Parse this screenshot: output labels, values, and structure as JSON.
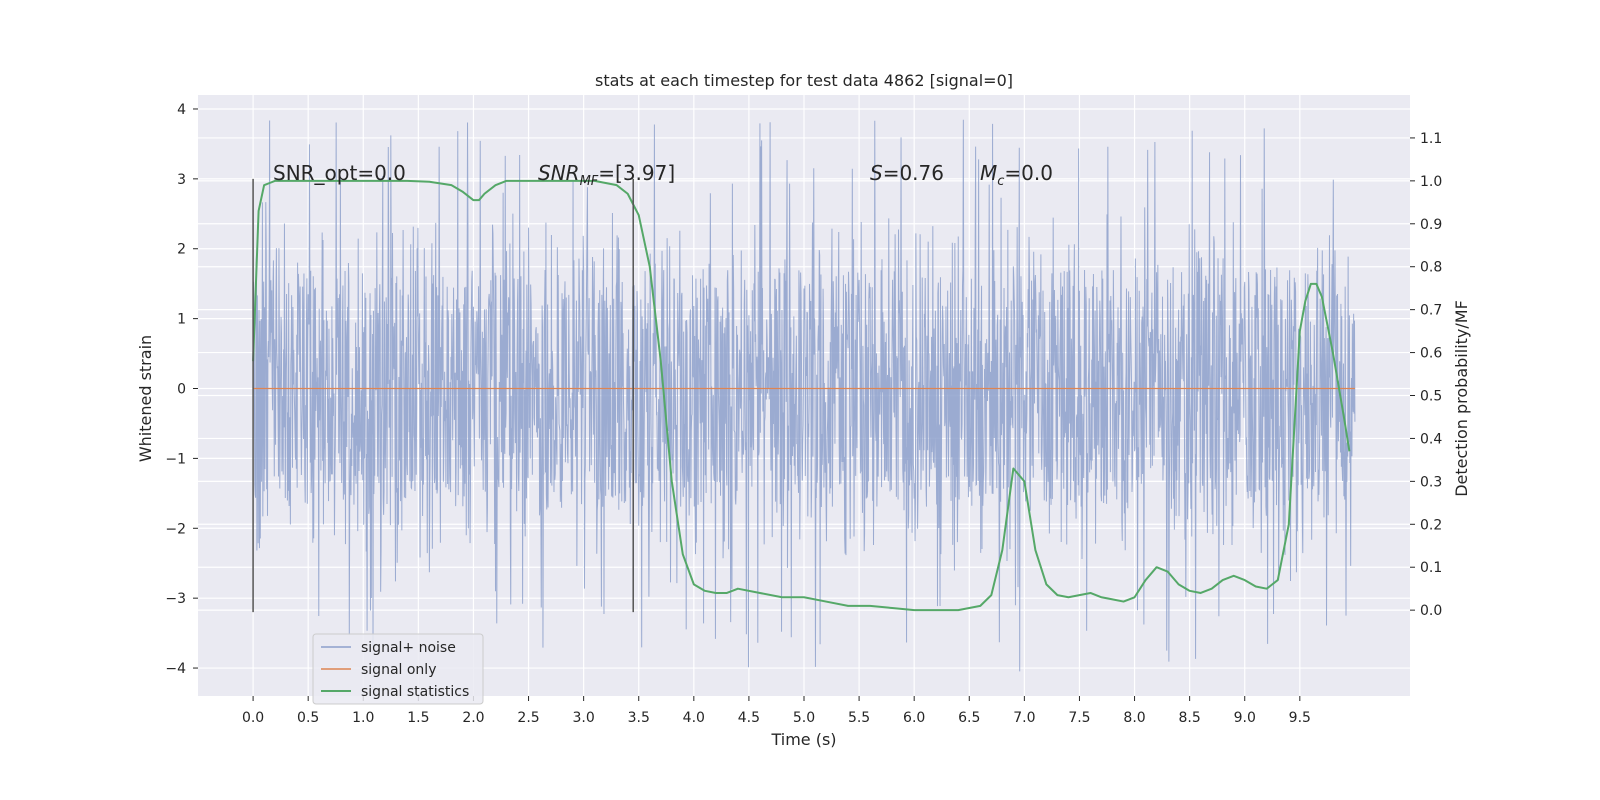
{
  "chart_data": {
    "type": "line",
    "title": "stats at each timestep for test data 4862 [signal=0]",
    "xlabel": "Time (s)",
    "ylabel": "Whitened strain",
    "y2label": "Detection probability/MF",
    "xlim": [
      -0.5,
      10.5
    ],
    "ylim": [
      -4.4,
      4.2
    ],
    "y2lim": [
      -0.2,
      1.2
    ],
    "xticks": [
      "0.0",
      "0.5",
      "1.0",
      "1.5",
      "2.0",
      "2.5",
      "3.0",
      "3.5",
      "4.0",
      "4.5",
      "5.0",
      "5.5",
      "6.0",
      "6.5",
      "7.0",
      "7.5",
      "8.0",
      "8.5",
      "9.0",
      "9.5"
    ],
    "yticks": [
      "4",
      "3",
      "2",
      "1",
      "0",
      "−1",
      "−2",
      "−3",
      "−4"
    ],
    "y2ticks": [
      "1.1",
      "1.0",
      "0.9",
      "0.8",
      "0.7",
      "0.6",
      "0.5",
      "0.4",
      "0.3",
      "0.2",
      "0.1",
      "0.0"
    ],
    "grid": true,
    "legend_position": "lower-left",
    "annotations": {
      "snr_opt": "SNR_opt=0.0",
      "snr_mf_main": "SNR",
      "snr_mf_sub": "MF",
      "snr_mf_val": "=[3.97]",
      "s_main": "S",
      "s_val": "=0.76",
      "mc_main": "M",
      "mc_sub": "c",
      "mc_val": "=0.0"
    },
    "vertical_markers": [
      {
        "x": 0.0,
        "y_range": [
          -3.2,
          3.0
        ]
      },
      {
        "x": 3.45,
        "y_range": [
          -3.2,
          3.0
        ]
      }
    ],
    "series": [
      {
        "name": "signal+ noise",
        "color": "#8da0cb",
        "axis": "left",
        "kind": "noise",
        "x_range": [
          0.0,
          10.0
        ],
        "core_amplitude": 1.7,
        "spike_max": 3.85,
        "spike_min": -4.05
      },
      {
        "name": "signal only",
        "color": "#dd8452",
        "axis": "left",
        "x": [
          0.0,
          10.0
        ],
        "y": [
          0.0,
          0.0
        ]
      },
      {
        "name": "signal statistics",
        "color": "#55a868",
        "axis": "right",
        "x": [
          0.0,
          0.05,
          0.1,
          0.15,
          0.2,
          0.4,
          0.6,
          0.8,
          1.0,
          1.2,
          1.4,
          1.6,
          1.8,
          1.9,
          2.0,
          2.05,
          2.1,
          2.2,
          2.3,
          2.5,
          2.7,
          2.9,
          3.1,
          3.3,
          3.4,
          3.5,
          3.6,
          3.7,
          3.8,
          3.9,
          4.0,
          4.1,
          4.2,
          4.3,
          4.4,
          4.6,
          4.8,
          5.0,
          5.2,
          5.4,
          5.6,
          5.8,
          6.0,
          6.2,
          6.4,
          6.6,
          6.7,
          6.8,
          6.9,
          7.0,
          7.1,
          7.2,
          7.3,
          7.4,
          7.5,
          7.6,
          7.7,
          7.8,
          7.9,
          8.0,
          8.1,
          8.2,
          8.3,
          8.4,
          8.5,
          8.6,
          8.7,
          8.8,
          8.9,
          9.0,
          9.1,
          9.2,
          9.3,
          9.4,
          9.5,
          9.55,
          9.6,
          9.65,
          9.7,
          9.8,
          9.9,
          9.95
        ],
        "y": [
          0.58,
          0.93,
          0.99,
          0.995,
          1.0,
          1.0,
          1.0,
          1.0,
          1.0,
          1.0,
          1.0,
          0.998,
          0.99,
          0.975,
          0.955,
          0.955,
          0.97,
          0.99,
          1.0,
          1.0,
          1.0,
          1.0,
          1.0,
          0.99,
          0.97,
          0.92,
          0.8,
          0.58,
          0.3,
          0.13,
          0.06,
          0.045,
          0.04,
          0.04,
          0.05,
          0.04,
          0.03,
          0.03,
          0.02,
          0.01,
          0.01,
          0.005,
          0.0,
          0.0,
          0.0,
          0.01,
          0.035,
          0.14,
          0.33,
          0.3,
          0.14,
          0.06,
          0.035,
          0.03,
          0.035,
          0.04,
          0.03,
          0.025,
          0.02,
          0.03,
          0.07,
          0.1,
          0.09,
          0.06,
          0.045,
          0.04,
          0.05,
          0.07,
          0.08,
          0.07,
          0.055,
          0.05,
          0.07,
          0.2,
          0.65,
          0.72,
          0.76,
          0.76,
          0.73,
          0.6,
          0.45,
          0.37
        ]
      }
    ]
  }
}
